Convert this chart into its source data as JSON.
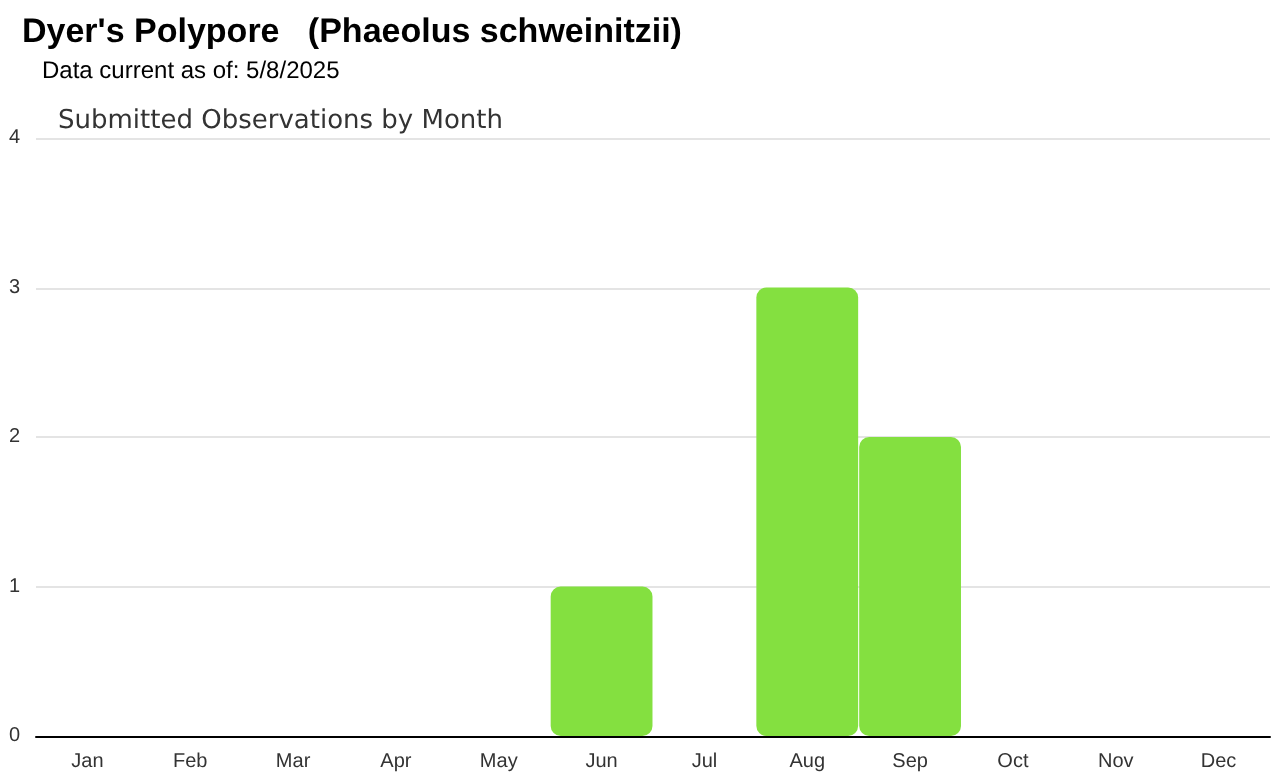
{
  "chart_data": {
    "type": "bar",
    "title": "Dyer's Polypore   (Phaeolus schweinitzii)",
    "subtitle": "Data current as of: 5/8/2025",
    "annotations": [
      "Submitted Observations by Month"
    ],
    "categories": [
      "Jan",
      "Feb",
      "Mar",
      "Apr",
      "May",
      "Jun",
      "Jul",
      "Aug",
      "Sep",
      "Oct",
      "Nov",
      "Dec"
    ],
    "values": [
      0,
      0,
      0,
      0,
      0,
      1,
      0,
      3,
      2,
      0,
      0,
      0
    ],
    "color": "#84e040",
    "ylim": [
      0,
      4
    ],
    "yticks": [
      0,
      1,
      2,
      3,
      4
    ],
    "grid": "y"
  }
}
